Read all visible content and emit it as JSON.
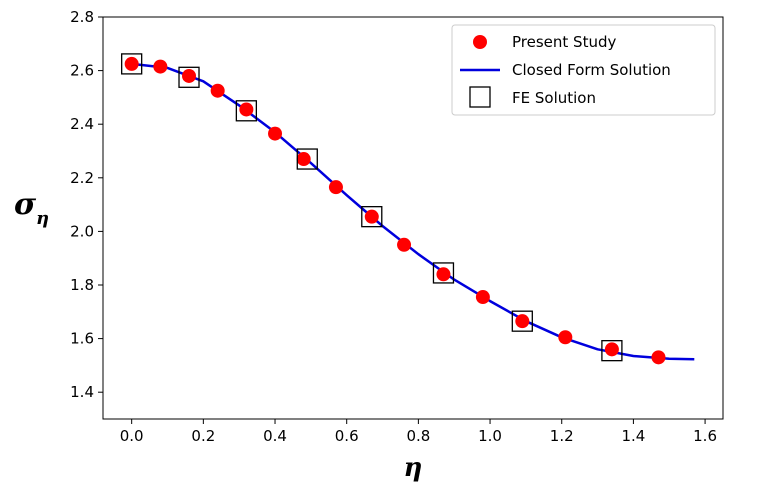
{
  "chart_data": {
    "type": "line",
    "title": "",
    "xlabel": "η",
    "ylabel": "σ",
    "ylabel_subscript": "η",
    "xlim": [
      -0.08,
      1.65
    ],
    "ylim": [
      1.3,
      2.8
    ],
    "xticks": [
      0.0,
      0.2,
      0.4,
      0.6,
      0.8,
      1.0,
      1.2,
      1.4,
      1.6
    ],
    "xtick_labels": [
      "0.0",
      "0.2",
      "0.4",
      "0.6",
      "0.8",
      "1.0",
      "1.2",
      "1.4",
      "1.6"
    ],
    "yticks": [
      1.4,
      1.6,
      1.8,
      2.0,
      2.2,
      2.4,
      2.6,
      2.8
    ],
    "ytick_labels": [
      "1.4",
      "1.6",
      "1.8",
      "2.0",
      "2.2",
      "2.4",
      "2.6",
      "2.8"
    ],
    "grid": false,
    "legend_position": "top-right",
    "series": [
      {
        "name": "Present Study",
        "kind": "scatter",
        "marker": "circle",
        "color": "#ff0000",
        "x": [
          0.0,
          0.08,
          0.16,
          0.24,
          0.32,
          0.4,
          0.48,
          0.57,
          0.67,
          0.76,
          0.87,
          0.98,
          1.09,
          1.21,
          1.34,
          1.47
        ],
        "y": [
          2.625,
          2.615,
          2.58,
          2.525,
          2.455,
          2.365,
          2.27,
          2.165,
          2.055,
          1.95,
          1.84,
          1.755,
          1.665,
          1.605,
          1.56,
          1.53
        ]
      },
      {
        "name": "Closed Form Solution",
        "kind": "line",
        "color": "#0000dd",
        "x": [
          0.0,
          0.1,
          0.2,
          0.3,
          0.4,
          0.5,
          0.6,
          0.7,
          0.8,
          0.9,
          1.0,
          1.1,
          1.2,
          1.3,
          1.4,
          1.5,
          1.57
        ],
        "y": [
          2.625,
          2.61,
          2.56,
          2.47,
          2.37,
          2.255,
          2.135,
          2.02,
          1.915,
          1.82,
          1.74,
          1.665,
          1.605,
          1.56,
          1.535,
          1.525,
          1.523
        ]
      },
      {
        "name": "FE Solution",
        "kind": "scatter",
        "marker": "square-open",
        "color": "#000000",
        "x": [
          0.0,
          0.16,
          0.32,
          0.49,
          0.67,
          0.87,
          1.09,
          1.34
        ],
        "y": [
          2.625,
          2.575,
          2.45,
          2.27,
          2.055,
          1.845,
          1.665,
          1.555
        ]
      }
    ]
  }
}
